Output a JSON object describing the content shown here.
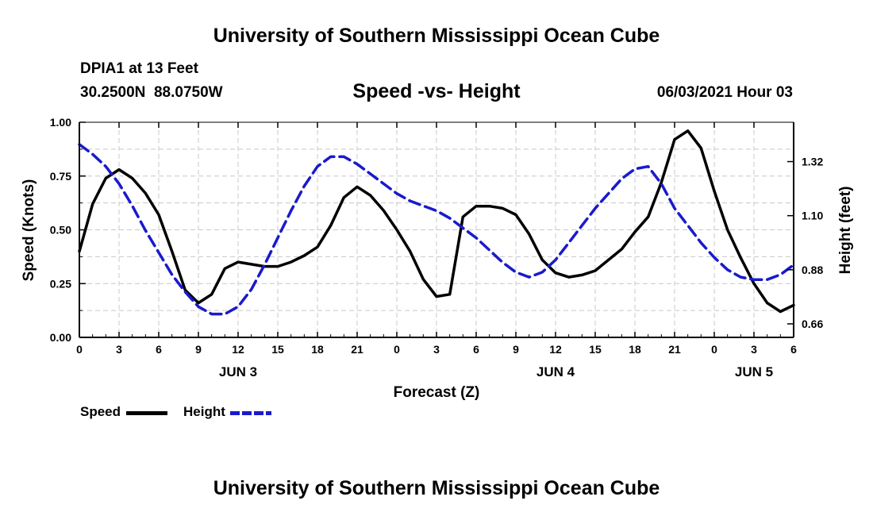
{
  "header": {
    "title": "University of Southern Mississippi Ocean Cube",
    "station": "DPIA1 at 13 Feet",
    "coordinates": "30.2500N  88.0750W",
    "subtitle": "Speed -vs- Height",
    "datetime": "06/03/2021 Hour 03"
  },
  "footer": {
    "title": "University of Southern Mississippi Ocean Cube"
  },
  "legend": {
    "speed_label": "Speed",
    "height_label": "Height"
  },
  "colors": {
    "speed": "#000000",
    "height": "#1a1acc",
    "grid": "#c8c8c8"
  },
  "chart_data": {
    "type": "line",
    "xlabel": "Forecast (Z)",
    "ylabel": "Speed (Knots)",
    "y2label": "Height (feet)",
    "xlim": [
      0,
      54
    ],
    "ylim": [
      0,
      1
    ],
    "y2lim": [
      0.605,
      1.48
    ],
    "grid": true,
    "legend_position": "bottom-left",
    "x_tick_values": [
      0,
      3,
      6,
      9,
      12,
      15,
      18,
      21,
      24,
      27,
      30,
      33,
      36,
      39,
      42,
      45,
      48,
      51,
      54
    ],
    "x_tick_labels": [
      "0",
      "3",
      "6",
      "9",
      "12",
      "15",
      "18",
      "21",
      "0",
      "3",
      "6",
      "9",
      "12",
      "15",
      "18",
      "21",
      "0",
      "3",
      "6"
    ],
    "day_labels": [
      {
        "x": 12,
        "label": "JUN 3"
      },
      {
        "x": 36,
        "label": "JUN 4"
      },
      {
        "x": 51,
        "label": "JUN 5"
      }
    ],
    "y_ticks": [
      0.0,
      0.25,
      0.5,
      0.75,
      1.0
    ],
    "y_tick_labels": [
      "0.00",
      "0.25",
      "0.50",
      "0.75",
      "1.00"
    ],
    "y2_ticks": [
      0.66,
      0.88,
      1.1,
      1.32
    ],
    "y2_tick_labels": [
      "0.66",
      "0.88",
      "1.10",
      "1.32"
    ],
    "series": [
      {
        "name": "Speed",
        "axis": "left",
        "x": [
          0,
          1,
          2,
          3,
          4,
          5,
          6,
          7,
          8,
          9,
          10,
          11,
          12,
          13,
          14,
          15,
          16,
          17,
          18,
          19,
          20,
          21,
          22,
          23,
          24,
          25,
          26,
          27,
          28,
          29,
          30,
          31,
          32,
          33,
          34,
          35,
          36,
          37,
          38,
          39,
          40,
          41,
          42,
          43,
          44,
          45,
          46,
          47,
          48,
          49,
          50,
          51,
          52,
          53,
          54
        ],
        "values": [
          0.4,
          0.62,
          0.74,
          0.78,
          0.74,
          0.67,
          0.57,
          0.4,
          0.22,
          0.16,
          0.2,
          0.32,
          0.35,
          0.34,
          0.33,
          0.33,
          0.35,
          0.38,
          0.42,
          0.52,
          0.65,
          0.7,
          0.66,
          0.59,
          0.5,
          0.4,
          0.27,
          0.19,
          0.2,
          0.56,
          0.61,
          0.61,
          0.6,
          0.57,
          0.48,
          0.36,
          0.3,
          0.28,
          0.29,
          0.31,
          0.36,
          0.41,
          0.49,
          0.56,
          0.72,
          0.92,
          0.96,
          0.88,
          0.68,
          0.5,
          0.37,
          0.25,
          0.16,
          0.12,
          0.15
        ]
      },
      {
        "name": "Height",
        "axis": "right",
        "x": [
          0,
          1,
          2,
          3,
          4,
          5,
          6,
          7,
          8,
          9,
          10,
          11,
          12,
          13,
          14,
          15,
          16,
          17,
          18,
          19,
          20,
          21,
          22,
          23,
          24,
          25,
          26,
          27,
          28,
          29,
          30,
          31,
          32,
          33,
          34,
          35,
          36,
          37,
          38,
          39,
          40,
          41,
          42,
          43,
          44,
          45,
          46,
          47,
          48,
          49,
          50,
          51,
          52,
          53,
          54
        ],
        "values": [
          1.39,
          1.35,
          1.3,
          1.23,
          1.14,
          1.04,
          0.95,
          0.86,
          0.79,
          0.73,
          0.7,
          0.7,
          0.73,
          0.8,
          0.9,
          1.01,
          1.12,
          1.22,
          1.3,
          1.34,
          1.34,
          1.31,
          1.27,
          1.23,
          1.19,
          1.16,
          1.14,
          1.12,
          1.09,
          1.05,
          1.01,
          0.96,
          0.91,
          0.87,
          0.85,
          0.87,
          0.92,
          0.99,
          1.06,
          1.13,
          1.19,
          1.25,
          1.29,
          1.3,
          1.23,
          1.13,
          1.06,
          0.99,
          0.93,
          0.88,
          0.85,
          0.84,
          0.84,
          0.86,
          0.9
        ]
      }
    ]
  }
}
